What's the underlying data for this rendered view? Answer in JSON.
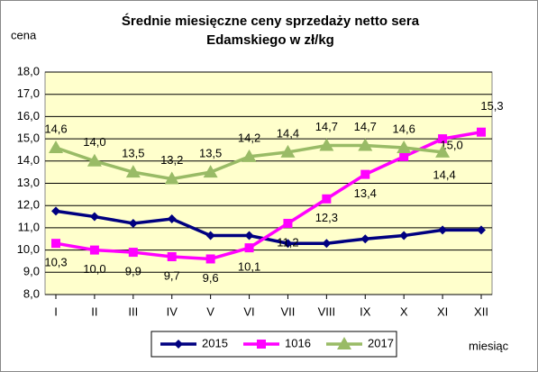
{
  "chart_data": {
    "type": "line",
    "title": [
      "Średnie miesięczne ceny sprzedaży netto sera",
      "Edamskiego w zł/kg"
    ],
    "y_label": "cena",
    "x_label": "miesiąc",
    "categories": [
      "I",
      "II",
      "III",
      "IV",
      "V",
      "VI",
      "VII",
      "VIII",
      "IX",
      "X",
      "XI",
      "XII"
    ],
    "series": [
      {
        "name": "2015",
        "color": "#000080",
        "marker": "diamond",
        "values": [
          11.75,
          11.5,
          11.2,
          11.4,
          10.65,
          10.65,
          10.3,
          10.3,
          10.5,
          10.65,
          10.9,
          10.9
        ]
      },
      {
        "name": "1016",
        "color": "#FF00FF",
        "marker": "square",
        "values": [
          10.3,
          10.0,
          9.9,
          9.7,
          9.6,
          10.1,
          11.2,
          12.3,
          13.4,
          14.2,
          15.0,
          15.3
        ],
        "value_labels": [
          "10,3",
          "10,0",
          "9,9",
          "9,7",
          "9,6",
          "10,1",
          "11,2",
          "12,3",
          "13,4",
          null,
          "15,0",
          "15,3"
        ]
      },
      {
        "name": "2017",
        "color": "#99BB66",
        "marker": "triangle",
        "values": [
          14.6,
          14.0,
          13.5,
          13.2,
          13.5,
          14.2,
          14.4,
          14.7,
          14.7,
          14.6,
          14.4,
          null
        ],
        "value_labels": [
          "14,6",
          "14,0",
          "13,5",
          "13,2",
          "13,5",
          "14,2",
          "14,4",
          "14,7",
          "14,7",
          "14,6",
          "14,4",
          null
        ]
      }
    ],
    "ylim": [
      8,
      18
    ],
    "yticks": [
      {
        "value": 8,
        "label": "8,0"
      },
      {
        "value": 9,
        "label": "9,0"
      },
      {
        "value": 10,
        "label": "10,0"
      },
      {
        "value": 11,
        "label": "11,0"
      },
      {
        "value": 12,
        "label": "12,0"
      },
      {
        "value": 13,
        "label": "13,0"
      },
      {
        "value": 14,
        "label": "14,0"
      },
      {
        "value": 15,
        "label": "15,0"
      },
      {
        "value": 16,
        "label": "16,0"
      },
      {
        "value": 17,
        "label": "17,0"
      },
      {
        "value": 18,
        "label": "18,0"
      }
    ],
    "grid": true,
    "legend": "bottom"
  }
}
